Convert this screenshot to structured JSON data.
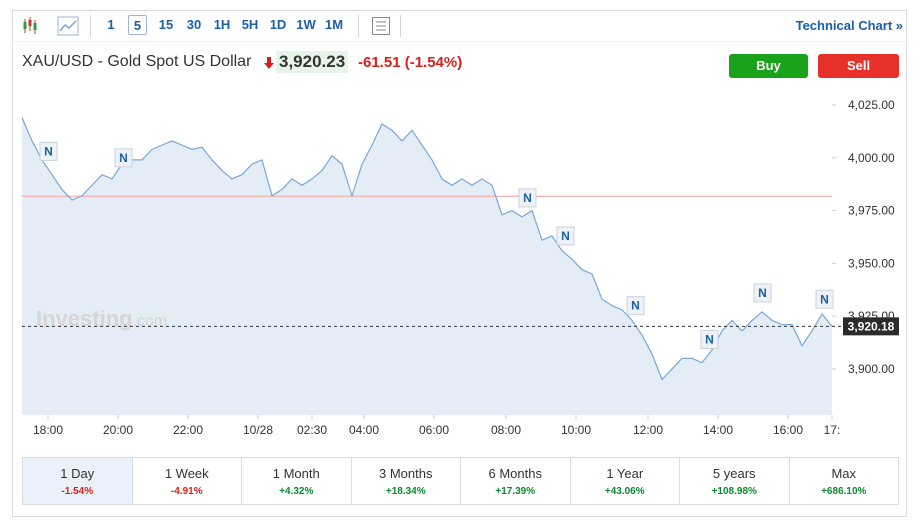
{
  "toolbar": {
    "intervals": [
      "1",
      "5",
      "15",
      "30",
      "1H",
      "5H",
      "1D",
      "1W",
      "1M"
    ],
    "active_index": 1,
    "technical_link": "Technical Chart »"
  },
  "header": {
    "title": "XAU/USD - Gold Spot US Dollar",
    "price": "3,920.23",
    "change": "-61.51",
    "change_percent": "(-1.54%)",
    "buy": "Buy",
    "sell": "Sell"
  },
  "chart": {
    "type": "area",
    "color": "#7aa7d6",
    "fill": "#e4edf6",
    "xlim": [
      0,
      81
    ],
    "ylim": [
      3878.2,
      4033.05
    ],
    "xticks": [
      {
        "value": 2.6,
        "label": "18:00"
      },
      {
        "value": 9.6,
        "label": "20:00"
      },
      {
        "value": 16.6,
        "label": "22:00"
      },
      {
        "value": 23.6,
        "label": "10/28"
      },
      {
        "value": 29,
        "label": "02:30"
      },
      {
        "value": 34.2,
        "label": "04:00"
      },
      {
        "value": 41.2,
        "label": "06:00"
      },
      {
        "value": 48.4,
        "label": "08:00"
      },
      {
        "value": 55.4,
        "label": "10:00"
      },
      {
        "value": 62.6,
        "label": "12:00"
      },
      {
        "value": 69.6,
        "label": "14:00"
      },
      {
        "value": 76.6,
        "label": "16:00"
      },
      {
        "value": 81,
        "label": "17:"
      }
    ],
    "yticks": [
      {
        "value": 3900,
        "label": "3,900.00"
      },
      {
        "value": 3925,
        "label": "3,925.00"
      },
      {
        "value": 3950,
        "label": "3,950.00"
      },
      {
        "value": 3975,
        "label": "3,975.00"
      },
      {
        "value": 4000,
        "label": "4,000.00"
      },
      {
        "value": 4025,
        "label": "4,025.00"
      }
    ],
    "values": [
      4019,
      4008,
      3999,
      3992,
      3985,
      3980,
      3982,
      3987,
      3992,
      3990,
      3997,
      3999,
      3999,
      4004,
      4006,
      4008,
      4006,
      4004,
      4005,
      3999,
      3994,
      3990,
      3992,
      3997,
      3999,
      3982,
      3985,
      3990,
      3987,
      3990,
      3994,
      4001,
      3997,
      3982,
      3997,
      4006,
      4016,
      4013,
      4008,
      4013,
      4006,
      3999,
      3990,
      3987,
      3990,
      3987,
      3990,
      3987,
      3973,
      3975,
      3972,
      3975,
      3961,
      3963,
      3956,
      3952,
      3947,
      3945,
      3933,
      3930,
      3928,
      3923,
      3916,
      3907,
      3895,
      3900,
      3905,
      3905,
      3903,
      3909,
      3918,
      3923,
      3918,
      3923,
      3927,
      3923,
      3921,
      3921,
      3911,
      3918,
      3926,
      3920.18
    ],
    "reference_line": 3981.74,
    "last_value": {
      "value": 3920.18,
      "label": "3,920.18"
    },
    "news_markers": [
      {
        "label": "N",
        "x": 2.6,
        "y": 4003
      },
      {
        "label": "N",
        "x": 10.1,
        "y": 4000
      },
      {
        "label": "N",
        "x": 50.5,
        "y": 3981
      },
      {
        "label": "N",
        "x": 54.3,
        "y": 3963
      },
      {
        "label": "N",
        "x": 61.3,
        "y": 3930
      },
      {
        "label": "N",
        "x": 68.7,
        "y": 3914
      },
      {
        "label": "N",
        "x": 74,
        "y": 3936
      },
      {
        "label": "N",
        "x": 80.2,
        "y": 3933
      }
    ],
    "watermark": {
      "brand": "Investing",
      "suffix": ".com"
    }
  },
  "periods": {
    "active_index": 0,
    "items": [
      {
        "name": "1 Day",
        "change": "-1.54%",
        "color": "#d91e18"
      },
      {
        "name": "1 Week",
        "change": "-4.91%",
        "color": "#d91e18"
      },
      {
        "name": "1 Month",
        "change": "+4.32%",
        "color": "#0b8a2e"
      },
      {
        "name": "3 Months",
        "change": "+18.34%",
        "color": "#0b8a2e"
      },
      {
        "name": "6 Months",
        "change": "+17.39%",
        "color": "#0b8a2e"
      },
      {
        "name": "1 Year",
        "change": "+43.06%",
        "color": "#0b8a2e"
      },
      {
        "name": "5 years",
        "change": "+108.98%",
        "color": "#0b8a2e"
      },
      {
        "name": "Max",
        "change": "+686.10%",
        "color": "#0b8a2e"
      }
    ]
  }
}
